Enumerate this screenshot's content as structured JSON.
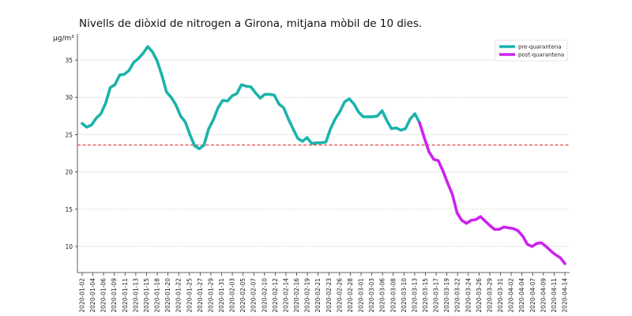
{
  "chart_data": {
    "type": "line",
    "title": "Nivells de diòxid de nitrogen a Girona, mitjana mòbil de 10 dies.",
    "ylabel": "μg/m³",
    "xlabel": "",
    "ylim": [
      6.5,
      38.5
    ],
    "yticks": [
      10,
      15,
      20,
      25,
      30,
      35
    ],
    "reference_line": {
      "y": 23.6,
      "color": "#dd2222",
      "style": "dashed"
    },
    "x_tick_labels": [
      "2020-01-02",
      "2020-01-04",
      "2020-01-06",
      "2020-01-09",
      "2020-01-11",
      "2020-01-13",
      "2020-01-15",
      "2020-01-18",
      "2020-01-20",
      "2020-01-22",
      "2020-01-25",
      "2020-01-27",
      "2020-01-29",
      "2020-01-31",
      "2020-02-03",
      "2020-02-05",
      "2020-02-07",
      "2020-02-10",
      "2020-02-12",
      "2020-02-14",
      "2020-02-16",
      "2020-02-19",
      "2020-02-21",
      "2020-02-23",
      "2020-02-26",
      "2020-02-28",
      "2020-03-01",
      "2020-03-03",
      "2020-03-06",
      "2020-03-08",
      "2020-03-10",
      "2020-03-13",
      "2020-03-15",
      "2020-03-17",
      "2020-03-19",
      "2020-03-22",
      "2020-03-24",
      "2020-03-26",
      "2020-03-29",
      "2020-03-31",
      "2020-04-02",
      "2020-04-04",
      "2020-04-07",
      "2020-04-09",
      "2020-04-11",
      "2020-04-14"
    ],
    "legend": {
      "position": "top-right"
    },
    "series": [
      {
        "name": "pre-quarantena",
        "color": "#1ab3aa",
        "points": [
          [
            0,
            26.5
          ],
          [
            1,
            26.0
          ],
          [
            2,
            26.3
          ],
          [
            3,
            27.2
          ],
          [
            4,
            27.8
          ],
          [
            5,
            29.2
          ],
          [
            6,
            31.3
          ],
          [
            7,
            31.7
          ],
          [
            8,
            33.0
          ],
          [
            9,
            33.1
          ],
          [
            10,
            33.6
          ],
          [
            11,
            34.7
          ],
          [
            12,
            35.2
          ],
          [
            13,
            35.9
          ],
          [
            14,
            36.8
          ],
          [
            15,
            36.1
          ],
          [
            16,
            34.9
          ],
          [
            17,
            33.0
          ],
          [
            18,
            30.7
          ],
          [
            19,
            30.0
          ],
          [
            20,
            29.0
          ],
          [
            21,
            27.5
          ],
          [
            22,
            26.7
          ],
          [
            23,
            25.0
          ],
          [
            24,
            23.5
          ],
          [
            25,
            23.1
          ],
          [
            26,
            23.6
          ],
          [
            27,
            25.8
          ],
          [
            28,
            27.0
          ],
          [
            29,
            28.6
          ],
          [
            30,
            29.6
          ],
          [
            31,
            29.5
          ],
          [
            32,
            30.2
          ],
          [
            33,
            30.5
          ],
          [
            34,
            31.7
          ],
          [
            35,
            31.5
          ],
          [
            36,
            31.4
          ],
          [
            37,
            30.6
          ],
          [
            38,
            29.9
          ],
          [
            39,
            30.4
          ],
          [
            40,
            30.4
          ],
          [
            41,
            30.3
          ],
          [
            42,
            29.1
          ],
          [
            43,
            28.6
          ],
          [
            44,
            27.1
          ],
          [
            45,
            25.8
          ],
          [
            46,
            24.5
          ],
          [
            47,
            24.1
          ],
          [
            48,
            24.6
          ],
          [
            49,
            23.8
          ],
          [
            50,
            23.9
          ],
          [
            51,
            23.9
          ],
          [
            52,
            24.0
          ],
          [
            53,
            25.8
          ],
          [
            54,
            27.1
          ],
          [
            55,
            28.1
          ],
          [
            56,
            29.4
          ],
          [
            57,
            29.8
          ],
          [
            58,
            29.1
          ],
          [
            59,
            28.0
          ],
          [
            60,
            27.4
          ],
          [
            61,
            27.4
          ],
          [
            62,
            27.4
          ],
          [
            63,
            27.5
          ],
          [
            64,
            28.2
          ],
          [
            65,
            26.9
          ],
          [
            66,
            25.8
          ],
          [
            67,
            25.9
          ],
          [
            68,
            25.6
          ],
          [
            69,
            25.8
          ],
          [
            70,
            27.1
          ],
          [
            71,
            27.8
          ],
          [
            72,
            26.6
          ]
        ]
      },
      {
        "name": "post-quarantena",
        "color": "#cc22ee",
        "points": [
          [
            72,
            26.6
          ],
          [
            73,
            24.6
          ],
          [
            74,
            22.7
          ],
          [
            75,
            21.7
          ],
          [
            76,
            21.5
          ],
          [
            77,
            20.1
          ],
          [
            78,
            18.5
          ],
          [
            79,
            17.0
          ],
          [
            80,
            14.5
          ],
          [
            81,
            13.5
          ],
          [
            82,
            13.1
          ],
          [
            83,
            13.5
          ],
          [
            84,
            13.6
          ],
          [
            85,
            14.0
          ],
          [
            86,
            13.4
          ],
          [
            87,
            12.8
          ],
          [
            88,
            12.3
          ],
          [
            89,
            12.3
          ],
          [
            90,
            12.6
          ],
          [
            91,
            12.5
          ],
          [
            92,
            12.4
          ],
          [
            93,
            12.1
          ],
          [
            94,
            11.4
          ],
          [
            95,
            10.3
          ],
          [
            96,
            10.0
          ],
          [
            97,
            10.4
          ],
          [
            98,
            10.5
          ],
          [
            99,
            10.0
          ],
          [
            100,
            9.4
          ],
          [
            101,
            8.9
          ],
          [
            102,
            8.5
          ],
          [
            103,
            7.7
          ]
        ]
      }
    ]
  }
}
